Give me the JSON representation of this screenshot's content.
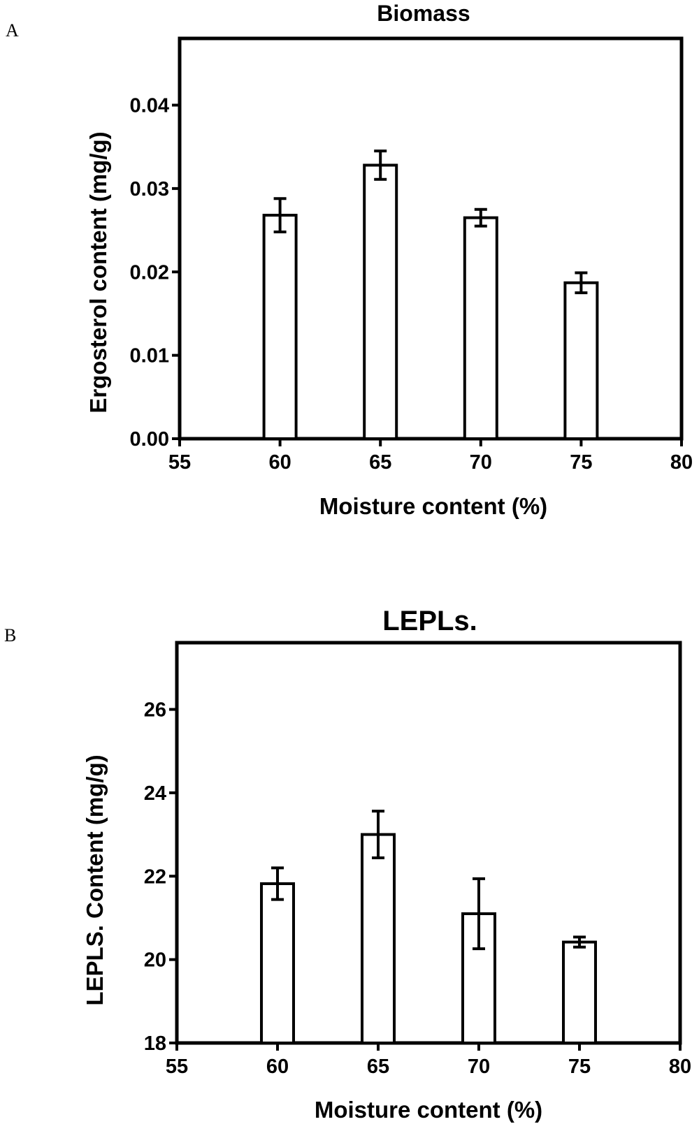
{
  "panels": [
    {
      "letter": "A",
      "chart_data": {
        "type": "bar",
        "title": "Biomass",
        "xlabel": "Moisture content (%)",
        "ylabel": "Ergosterol content (mg/g)",
        "xlim": [
          55,
          80
        ],
        "ylim": [
          0,
          0.048
        ],
        "xticks": [
          "55",
          "60",
          "65",
          "70",
          "75",
          "80"
        ],
        "xtick_values": [
          55,
          60,
          65,
          70,
          75,
          80
        ],
        "yticks": [
          "0.00",
          "0.01",
          "0.02",
          "0.03",
          "0.04"
        ],
        "ytick_values": [
          0,
          0.01,
          0.02,
          0.03,
          0.04
        ],
        "x": [
          60,
          65,
          70,
          75
        ],
        "values": [
          0.0268,
          0.0328,
          0.0265,
          0.0187
        ],
        "errors": [
          0.002,
          0.0017,
          0.001,
          0.0012
        ],
        "grid": false,
        "bar_color": "#ffffff",
        "edge_color": "#000000"
      }
    },
    {
      "letter": "B",
      "chart_data": {
        "type": "bar",
        "title": "LEPLs.",
        "xlabel": "Moisture content (%)",
        "ylabel": "LEPLS. Content (mg/g)",
        "xlim": [
          55,
          80
        ],
        "ylim": [
          18,
          27.6
        ],
        "xticks": [
          "55",
          "60",
          "65",
          "70",
          "75",
          "80"
        ],
        "xtick_values": [
          55,
          60,
          65,
          70,
          75,
          80
        ],
        "yticks": [
          "18",
          "20",
          "22",
          "24",
          "26"
        ],
        "ytick_values": [
          18,
          20,
          22,
          24,
          26
        ],
        "x": [
          60,
          65,
          70,
          75
        ],
        "values": [
          21.82,
          23.0,
          21.1,
          20.42
        ],
        "errors": [
          0.38,
          0.56,
          0.84,
          0.12
        ],
        "grid": false,
        "bar_color": "#ffffff",
        "edge_color": "#000000"
      }
    }
  ]
}
